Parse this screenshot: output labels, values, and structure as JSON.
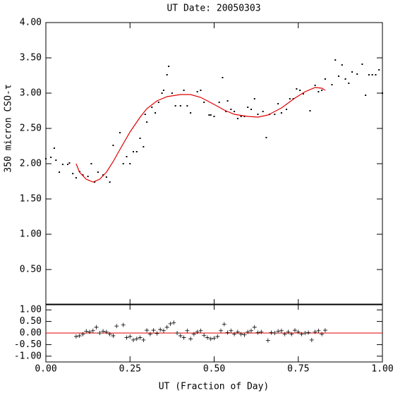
{
  "chart_data": [
    {
      "type": "scatter",
      "title": "UT Date: 20050303",
      "y_label": "350 micron CSO-τ",
      "xlim": [
        0,
        1
      ],
      "ylim": [
        0,
        4
      ],
      "yticks": [
        {
          "value": 0.5,
          "label": "0.50"
        },
        {
          "value": 1,
          "label": "1.00"
        },
        {
          "value": 1.5,
          "label": "1.50"
        },
        {
          "value": 2,
          "label": "2.00"
        },
        {
          "value": 2.5,
          "label": "2.50"
        },
        {
          "value": 3,
          "label": "3.00"
        },
        {
          "value": 3.5,
          "label": "3.50"
        },
        {
          "value": 4,
          "label": "4.00"
        }
      ],
      "series": [
        {
          "mode": "markers",
          "color": "#000000",
          "x": [
            0.0,
            0.015,
            0.025,
            0.03,
            0.04,
            0.05,
            0.065,
            0.07,
            0.08,
            0.09,
            0.1,
            0.11,
            0.125,
            0.135,
            0.145,
            0.155,
            0.17,
            0.18,
            0.19,
            0.2,
            0.22,
            0.23,
            0.24,
            0.25,
            0.26,
            0.27,
            0.28,
            0.29,
            0.295,
            0.3,
            0.315,
            0.325,
            0.335,
            0.345,
            0.35,
            0.36,
            0.365,
            0.375,
            0.385,
            0.4,
            0.41,
            0.42,
            0.43,
            0.45,
            0.46,
            0.47,
            0.485,
            0.49,
            0.5,
            0.515,
            0.525,
            0.535,
            0.54,
            0.55,
            0.56,
            0.57,
            0.58,
            0.59,
            0.6,
            0.61,
            0.62,
            0.63,
            0.645,
            0.655,
            0.665,
            0.68,
            0.69,
            0.7,
            0.715,
            0.725,
            0.735,
            0.745,
            0.755,
            0.765,
            0.785,
            0.8,
            0.81,
            0.82,
            0.83,
            0.85,
            0.86,
            0.87,
            0.88,
            0.89,
            0.9,
            0.91,
            0.925,
            0.94,
            0.95,
            0.96,
            0.97,
            0.98,
            0.99,
            1.0
          ],
          "values": [
            2.07,
            2.09,
            2.22,
            2.05,
            1.88,
            1.99,
            1.99,
            2.01,
            1.86,
            1.8,
            1.89,
            1.84,
            1.82,
            2.0,
            1.74,
            1.88,
            1.84,
            1.81,
            1.74,
            2.26,
            2.44,
            2.0,
            2.1,
            2.0,
            2.17,
            2.17,
            2.36,
            2.24,
            2.7,
            2.59,
            2.8,
            2.72,
            2.87,
            3.0,
            3.04,
            3.26,
            3.38,
            3.0,
            2.82,
            2.82,
            3.04,
            2.82,
            2.72,
            3.02,
            3.04,
            2.87,
            2.69,
            2.69,
            2.67,
            2.87,
            3.22,
            2.74,
            2.89,
            2.77,
            2.74,
            2.64,
            2.67,
            2.67,
            2.8,
            2.77,
            2.92,
            2.7,
            2.74,
            2.37,
            2.7,
            2.7,
            2.85,
            2.72,
            2.77,
            2.92,
            2.92,
            3.06,
            3.04,
            2.99,
            2.75,
            3.11,
            3.02,
            3.04,
            3.2,
            3.12,
            3.47,
            3.24,
            3.4,
            3.2,
            3.14,
            3.3,
            3.27,
            3.41,
            2.97,
            3.26,
            3.26,
            3.26,
            3.33,
            3.0
          ]
        },
        {
          "mode": "line",
          "color": "#e00000",
          "x": [
            0.09,
            0.1,
            0.12,
            0.14,
            0.16,
            0.18,
            0.2,
            0.22,
            0.25,
            0.28,
            0.3,
            0.33,
            0.36,
            0.4,
            0.43,
            0.46,
            0.5,
            0.53,
            0.56,
            0.6,
            0.63,
            0.66,
            0.7,
            0.74,
            0.77,
            0.8,
            0.82,
            0.83
          ],
          "values": [
            2.0,
            1.88,
            1.78,
            1.74,
            1.78,
            1.88,
            2.03,
            2.2,
            2.45,
            2.66,
            2.78,
            2.89,
            2.95,
            2.98,
            2.98,
            2.94,
            2.84,
            2.76,
            2.7,
            2.67,
            2.66,
            2.69,
            2.79,
            2.93,
            3.02,
            3.08,
            3.07,
            3.04
          ]
        }
      ]
    },
    {
      "type": "scatter",
      "x_label": "UT (Fraction of Day)",
      "xlim": [
        0,
        1
      ],
      "ylim": [
        -1.25,
        1.25
      ],
      "xticks": [
        {
          "value": 0,
          "label": "0.00"
        },
        {
          "value": 0.25,
          "label": "0.25"
        },
        {
          "value": 0.5,
          "label": "0.50"
        },
        {
          "value": 0.75,
          "label": "0.75"
        },
        {
          "value": 1,
          "label": "1.00"
        }
      ],
      "yticks": [
        {
          "value": -1,
          "label": "-1.00"
        },
        {
          "value": -0.5,
          "label": "-0.50"
        },
        {
          "value": 0,
          "label": "0.00"
        },
        {
          "value": 0.5,
          "label": "0.50"
        },
        {
          "value": 1,
          "label": "1.00"
        }
      ],
      "reference_line": {
        "value": 0,
        "color": "#e00000"
      },
      "series": [
        {
          "mode": "plus",
          "color": "#000000",
          "x": [
            0.09,
            0.1,
            0.11,
            0.12,
            0.13,
            0.14,
            0.15,
            0.16,
            0.17,
            0.18,
            0.19,
            0.2,
            0.21,
            0.23,
            0.24,
            0.25,
            0.26,
            0.27,
            0.28,
            0.29,
            0.3,
            0.31,
            0.32,
            0.33,
            0.34,
            0.35,
            0.36,
            0.37,
            0.38,
            0.39,
            0.4,
            0.41,
            0.42,
            0.43,
            0.44,
            0.45,
            0.46,
            0.47,
            0.48,
            0.49,
            0.5,
            0.51,
            0.52,
            0.53,
            0.54,
            0.55,
            0.56,
            0.57,
            0.58,
            0.59,
            0.6,
            0.61,
            0.62,
            0.63,
            0.64,
            0.66,
            0.67,
            0.68,
            0.69,
            0.7,
            0.71,
            0.72,
            0.73,
            0.74,
            0.75,
            0.76,
            0.77,
            0.78,
            0.79,
            0.8,
            0.81,
            0.82,
            0.83
          ],
          "values": [
            -0.15,
            -0.12,
            -0.05,
            0.08,
            0.05,
            0.1,
            0.25,
            0.0,
            0.08,
            0.05,
            -0.05,
            -0.12,
            0.3,
            0.35,
            -0.2,
            -0.15,
            -0.3,
            -0.25,
            -0.2,
            -0.3,
            0.12,
            -0.05,
            0.12,
            -0.02,
            0.15,
            0.1,
            0.25,
            0.4,
            0.45,
            0.0,
            -0.12,
            -0.2,
            0.1,
            -0.25,
            -0.05,
            0.05,
            0.1,
            -0.1,
            -0.2,
            -0.25,
            -0.22,
            -0.15,
            0.1,
            0.38,
            0.02,
            0.1,
            -0.05,
            0.05,
            -0.05,
            -0.08,
            0.05,
            0.1,
            0.25,
            0.02,
            0.05,
            -0.32,
            0.02,
            0.0,
            0.08,
            0.1,
            -0.05,
            0.05,
            -0.05,
            0.12,
            0.05,
            -0.05,
            0.0,
            0.02,
            -0.3,
            0.05,
            0.1,
            -0.05,
            0.12
          ]
        }
      ]
    }
  ]
}
